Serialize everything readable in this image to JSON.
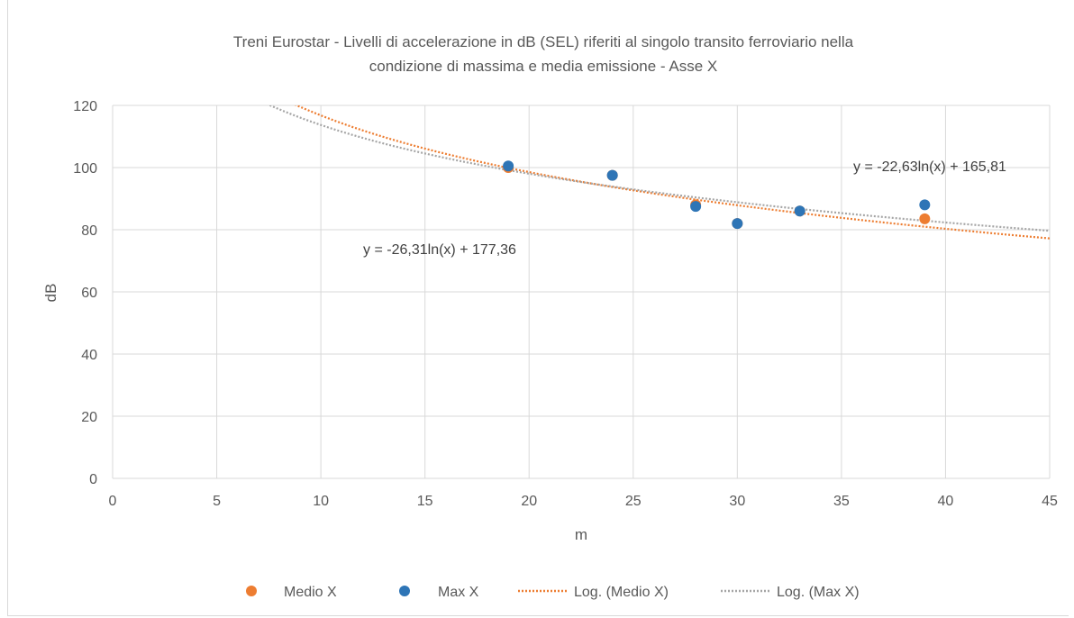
{
  "chart_data": {
    "type": "scatter",
    "title_line1": "Treni Eurostar - Livelli di accelerazione in dB (SEL) riferiti al singolo transito ferroviario nella",
    "title_line2": "condizione di massima e media emissione - Asse X",
    "xlabel": "m",
    "ylabel": "dB",
    "xlim": [
      0,
      45
    ],
    "ylim": [
      0,
      120
    ],
    "x_ticks": [
      0,
      5,
      10,
      15,
      20,
      25,
      30,
      35,
      40,
      45
    ],
    "y_ticks": [
      0,
      20,
      40,
      60,
      80,
      100,
      120
    ],
    "grid": true,
    "legend_position": "bottom",
    "series": [
      {
        "name": "Medio X",
        "color": "#ed7d31",
        "points": [
          {
            "x": 19,
            "y": 100
          },
          {
            "x": 24,
            "y": 97.5
          },
          {
            "x": 28,
            "y": 88
          },
          {
            "x": 30,
            "y": 82
          },
          {
            "x": 33,
            "y": 86
          },
          {
            "x": 39,
            "y": 83.5
          }
        ]
      },
      {
        "name": "Max X",
        "color": "#2e75b6",
        "points": [
          {
            "x": 19,
            "y": 100.5
          },
          {
            "x": 24,
            "y": 97.5
          },
          {
            "x": 28,
            "y": 87.5
          },
          {
            "x": 30,
            "y": 82
          },
          {
            "x": 33,
            "y": 86
          },
          {
            "x": 39,
            "y": 88
          }
        ]
      }
    ],
    "trendlines": [
      {
        "name": "Log. (Medio X)",
        "color": "#ed7d31",
        "a": -26.31,
        "b": 177.36,
        "equation": "y = -26,31ln(x) + 177,36"
      },
      {
        "name": "Log. (Max X)",
        "color": "#a5a5a5",
        "a": -22.63,
        "b": 165.81,
        "equation": "y = -22,63ln(x) + 165,81"
      }
    ]
  }
}
